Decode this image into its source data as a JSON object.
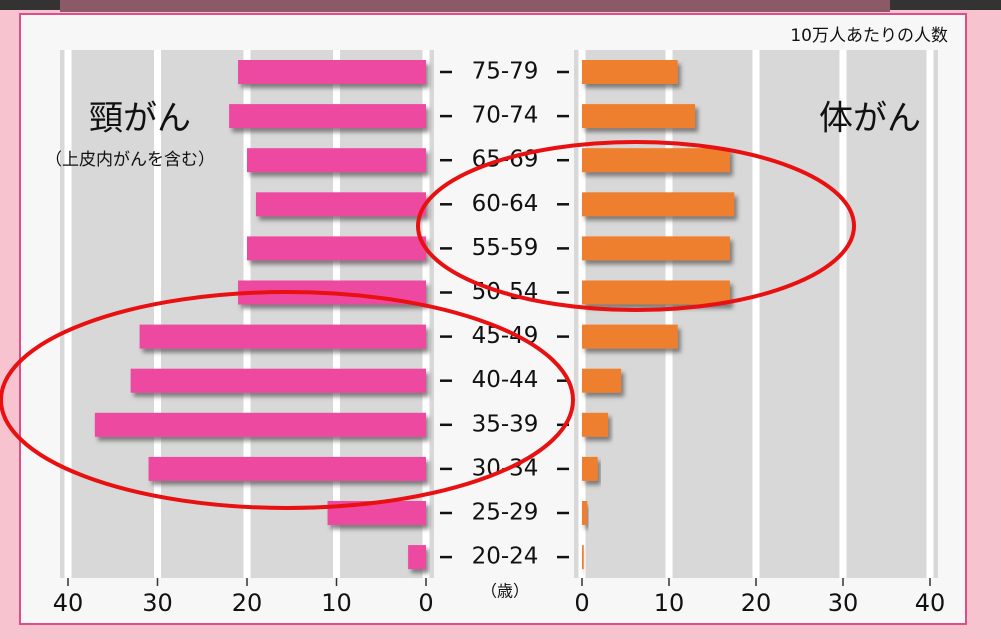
{
  "chart_data": {
    "type": "butterfly",
    "annotation": "10万人あたりの人数",
    "category_axis_label": "（歳）",
    "categories": [
      "75-79",
      "70-74",
      "65-69",
      "60-64",
      "55-59",
      "50-54",
      "45-49",
      "40-44",
      "35-39",
      "30-34",
      "25-29",
      "20-24"
    ],
    "series": [
      {
        "name": "頸がん",
        "note": "（上皮内がんを含む）",
        "color": "#ee4aa0",
        "values": [
          21,
          22,
          20,
          19,
          20,
          21,
          32,
          33,
          37,
          31,
          11,
          2
        ]
      },
      {
        "name": "体がん",
        "color": "#ee7f2e",
        "values": [
          11,
          13,
          17,
          17.5,
          17,
          17,
          11,
          4.5,
          3,
          1.8,
          0.6,
          0.2
        ]
      }
    ],
    "xlim": [
      0,
      40
    ],
    "xticks": [
      0,
      10,
      20,
      30,
      40
    ],
    "grid": true
  }
}
